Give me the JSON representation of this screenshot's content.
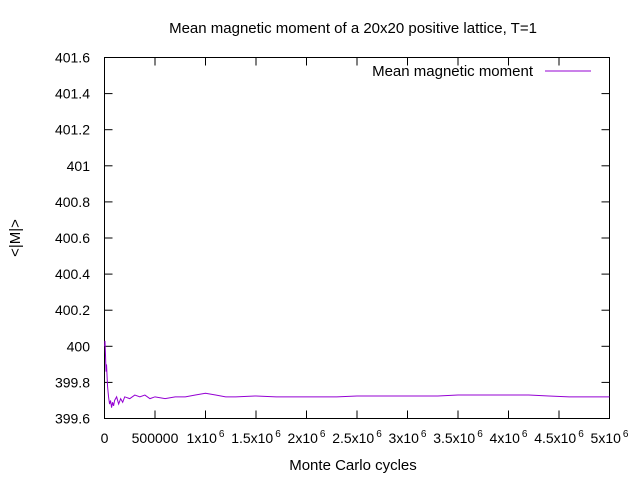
{
  "chart_data": {
    "type": "line",
    "title": "Mean magnetic moment of a 20x20 positive lattice, T=1",
    "xlabel": "Monte Carlo cycles",
    "ylabel": "<|M|>",
    "xlim": [
      0,
      5000000
    ],
    "ylim": [
      399.6,
      401.6
    ],
    "grid": false,
    "legend_position": "top-right",
    "y_ticks": [
      {
        "value": 399.6,
        "label": "399.6"
      },
      {
        "value": 399.8,
        "label": "399.8"
      },
      {
        "value": 400.0,
        "label": "400"
      },
      {
        "value": 400.2,
        "label": "400.2"
      },
      {
        "value": 400.4,
        "label": "400.4"
      },
      {
        "value": 400.6,
        "label": "400.6"
      },
      {
        "value": 400.8,
        "label": "400.8"
      },
      {
        "value": 401.0,
        "label": "401"
      },
      {
        "value": 401.2,
        "label": "401.2"
      },
      {
        "value": 401.4,
        "label": "401.4"
      },
      {
        "value": 401.6,
        "label": "401.6"
      }
    ],
    "x_ticks": [
      {
        "value": 0,
        "label": "0",
        "exp": ""
      },
      {
        "value": 500000,
        "label": "500000",
        "exp": ""
      },
      {
        "value": 1000000,
        "label": "1x10",
        "exp": "6"
      },
      {
        "value": 1500000,
        "label": "1.5x10",
        "exp": "6"
      },
      {
        "value": 2000000,
        "label": "2x10",
        "exp": "6"
      },
      {
        "value": 2500000,
        "label": "2.5x10",
        "exp": "6"
      },
      {
        "value": 3000000,
        "label": "3x10",
        "exp": "6"
      },
      {
        "value": 3500000,
        "label": "3.5x10",
        "exp": "6"
      },
      {
        "value": 4000000,
        "label": "4x10",
        "exp": "6"
      },
      {
        "value": 4500000,
        "label": "4.5x10",
        "exp": "6"
      },
      {
        "value": 5000000,
        "label": "5x10",
        "exp": "6"
      }
    ],
    "series": [
      {
        "name": "Mean magnetic moment",
        "color": "#9400d3",
        "x": [
          1000,
          5000,
          10000,
          15000,
          20000,
          30000,
          40000,
          50000,
          60000,
          70000,
          80000,
          90000,
          100000,
          120000,
          140000,
          160000,
          180000,
          200000,
          250000,
          300000,
          350000,
          400000,
          450000,
          500000,
          600000,
          700000,
          800000,
          900000,
          1000000,
          1100000,
          1200000,
          1300000,
          1500000,
          1700000,
          2000000,
          2300000,
          2500000,
          2800000,
          3000000,
          3300000,
          3500000,
          3800000,
          4000000,
          4200000,
          4400000,
          4600000,
          4800000,
          5000000
        ],
        "y": [
          400.0,
          400.03,
          399.95,
          399.86,
          399.9,
          399.78,
          399.72,
          399.68,
          399.7,
          399.66,
          399.69,
          399.67,
          399.7,
          399.72,
          399.68,
          399.71,
          399.69,
          399.72,
          399.71,
          399.73,
          399.72,
          399.73,
          399.71,
          399.72,
          399.71,
          399.72,
          399.72,
          399.73,
          399.74,
          399.73,
          399.72,
          399.72,
          399.725,
          399.72,
          399.72,
          399.72,
          399.725,
          399.725,
          399.725,
          399.725,
          399.73,
          399.73,
          399.73,
          399.73,
          399.725,
          399.72,
          399.72,
          399.72
        ]
      }
    ]
  }
}
